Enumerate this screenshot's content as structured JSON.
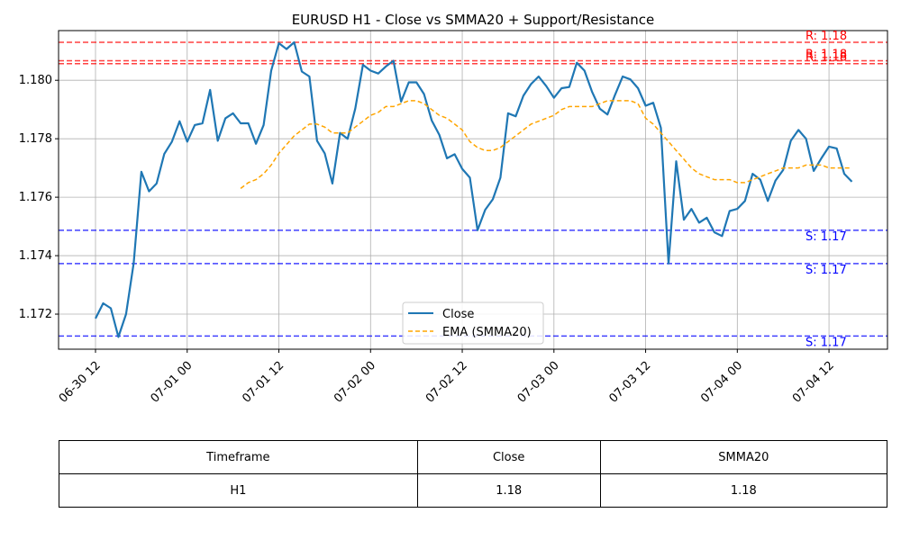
{
  "chart_data": {
    "type": "line",
    "title": "EURUSD H1 - Close vs SMMA20 + Support/Resistance",
    "xlabel": "",
    "ylabel": "",
    "ylim": [
      1.1708,
      1.1817
    ],
    "x_tick_labels": [
      "06-30 12",
      "07-01 00",
      "07-01 12",
      "07-02 00",
      "07-02 12",
      "07-03 00",
      "07-03 12",
      "07-04 00",
      "07-04 12"
    ],
    "y_tick_labels": [
      "1.172",
      "1.174",
      "1.176",
      "1.178",
      "1.180"
    ],
    "y_ticks": [
      1.172,
      1.174,
      1.176,
      1.178,
      1.18
    ],
    "grid": true,
    "legend_position": "lower-center",
    "series": [
      {
        "name": "Close",
        "color": "#1f77b4",
        "style": "solid",
        "x_hours_from_start": [
          0,
          1,
          2,
          3,
          4,
          5,
          6,
          7,
          8,
          9,
          10,
          11,
          12,
          13,
          14,
          15,
          16,
          17,
          18,
          19,
          20,
          21,
          22,
          23,
          24,
          25,
          26,
          27,
          28,
          29,
          30,
          31,
          32,
          33,
          34,
          35,
          36,
          37,
          38,
          39,
          40,
          41,
          42,
          43,
          44,
          45,
          46,
          47,
          48,
          49,
          50,
          51,
          52,
          53,
          54,
          55,
          56,
          57,
          58,
          59,
          60,
          61,
          62,
          63,
          64,
          65,
          66,
          67,
          68,
          69,
          70,
          71,
          72,
          73,
          74,
          75,
          76,
          77,
          78,
          79,
          80,
          81,
          82,
          83,
          84,
          85,
          86,
          87,
          88,
          89,
          90,
          91,
          92,
          93,
          94,
          95,
          96,
          97,
          98,
          99
        ],
        "values": [
          1.17185,
          1.17237,
          1.1722,
          1.17122,
          1.172,
          1.17375,
          1.17687,
          1.1762,
          1.17647,
          1.17748,
          1.1779,
          1.1786,
          1.1779,
          1.17847,
          1.17853,
          1.17967,
          1.17793,
          1.1787,
          1.17887,
          1.17853,
          1.17853,
          1.17783,
          1.17847,
          1.18033,
          1.18127,
          1.18107,
          1.1813,
          1.1803,
          1.18013,
          1.17793,
          1.1775,
          1.17647,
          1.1782,
          1.178,
          1.17903,
          1.18053,
          1.18033,
          1.18023,
          1.18047,
          1.18067,
          1.17927,
          1.17993,
          1.17993,
          1.17953,
          1.17863,
          1.17813,
          1.17733,
          1.17747,
          1.17697,
          1.17667,
          1.17487,
          1.17557,
          1.17593,
          1.17667,
          1.17887,
          1.17877,
          1.17947,
          1.17987,
          1.18013,
          1.1798,
          1.1794,
          1.17973,
          1.17977,
          1.1806,
          1.18033,
          1.1796,
          1.17903,
          1.17883,
          1.1795,
          1.18013,
          1.18003,
          1.17973,
          1.17913,
          1.17923,
          1.17837,
          1.17373,
          1.17723,
          1.17523,
          1.1756,
          1.17513,
          1.1753,
          1.1748,
          1.17467,
          1.17553,
          1.1756,
          1.17587,
          1.1768,
          1.1766,
          1.17587,
          1.17657,
          1.17693,
          1.17793,
          1.1783,
          1.178,
          1.1769,
          1.17733,
          1.17773,
          1.17767,
          1.1768,
          1.17653
        ]
      },
      {
        "name": "EMA (SMMA20)",
        "color": "#ffa500",
        "style": "dashed",
        "x_hours_from_start": [
          19,
          20,
          21,
          22,
          23,
          24,
          25,
          26,
          27,
          28,
          29,
          30,
          31,
          32,
          33,
          34,
          35,
          36,
          37,
          38,
          39,
          40,
          41,
          42,
          43,
          44,
          45,
          46,
          47,
          48,
          49,
          50,
          51,
          52,
          53,
          54,
          55,
          56,
          57,
          58,
          59,
          60,
          61,
          62,
          63,
          64,
          65,
          66,
          67,
          68,
          69,
          70,
          71,
          72,
          73,
          74,
          75,
          76,
          77,
          78,
          79,
          80,
          81,
          82,
          83,
          84,
          85,
          86,
          87,
          88,
          89,
          90,
          91,
          92,
          93,
          94,
          95,
          96,
          97,
          98,
          99
        ],
        "values": [
          1.1763,
          1.1765,
          1.1766,
          1.1768,
          1.1771,
          1.1775,
          1.1778,
          1.1781,
          1.1783,
          1.1785,
          1.1785,
          1.1784,
          1.1782,
          1.1782,
          1.1782,
          1.1784,
          1.1786,
          1.1788,
          1.1789,
          1.1791,
          1.1791,
          1.1792,
          1.1793,
          1.1793,
          1.1792,
          1.179,
          1.1788,
          1.1787,
          1.1785,
          1.1783,
          1.1779,
          1.1777,
          1.1776,
          1.1776,
          1.1777,
          1.1779,
          1.1781,
          1.1783,
          1.1785,
          1.1786,
          1.1787,
          1.1788,
          1.179,
          1.1791,
          1.1791,
          1.1791,
          1.1791,
          1.1792,
          1.1793,
          1.1793,
          1.1793,
          1.1793,
          1.1792,
          1.1787,
          1.1785,
          1.1782,
          1.1779,
          1.1776,
          1.1773,
          1.177,
          1.1768,
          1.1767,
          1.1766,
          1.1766,
          1.1766,
          1.1765,
          1.1765,
          1.1766,
          1.1767,
          1.1768,
          1.1769,
          1.177,
          1.177,
          1.177,
          1.1771,
          1.1771,
          1.1771,
          1.177,
          1.177,
          1.177,
          1.177
        ]
      }
    ],
    "resistance_lines": [
      1.1813,
      1.18067,
      1.18057
    ],
    "support_lines": [
      1.17487,
      1.17373,
      1.17125
    ],
    "resistance_label": "R: 1.18",
    "support_label": "S: 1.17",
    "resistance_color": "#ff0000",
    "support_color": "#0000ff"
  },
  "table": {
    "headers": [
      "Timeframe",
      "Close",
      "SMMA20"
    ],
    "row": [
      "H1",
      "1.18",
      "1.18"
    ]
  }
}
